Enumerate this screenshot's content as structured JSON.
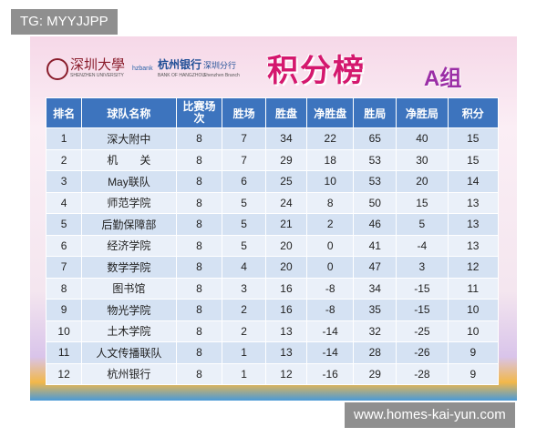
{
  "watermarks": {
    "top": "TG: MYYJJPP",
    "bottom": "www.homes-kai-yun.com"
  },
  "header": {
    "university": "深圳大學",
    "university_en": "SHENZHEN UNIVERSITY",
    "bank_short": "hzbank",
    "bank": "杭州银行",
    "branch": "深圳分行",
    "bank_en": "BANK OF HANGZHOU",
    "branch_en": "Shenzhen Branch",
    "title": "积分榜",
    "group": "A组"
  },
  "table": {
    "columns": [
      "排名",
      "球队名称",
      "比赛场次",
      "胜场",
      "胜盘",
      "净胜盘",
      "胜局",
      "净胜局",
      "积分"
    ],
    "rows": [
      [
        1,
        "深大附中",
        8,
        7,
        34,
        22,
        65,
        40,
        15
      ],
      [
        2,
        "机　　关",
        8,
        7,
        29,
        18,
        53,
        30,
        15
      ],
      [
        3,
        "May联队",
        8,
        6,
        25,
        10,
        53,
        20,
        14
      ],
      [
        4,
        "师范学院",
        8,
        5,
        24,
        8,
        50,
        15,
        13
      ],
      [
        5,
        "后勤保障部",
        8,
        5,
        21,
        2,
        46,
        5,
        13
      ],
      [
        6,
        "经济学院",
        8,
        5,
        20,
        0,
        41,
        -4,
        13
      ],
      [
        7,
        "数学学院",
        8,
        4,
        20,
        0,
        47,
        3,
        12
      ],
      [
        8,
        "图书馆",
        8,
        3,
        16,
        -8,
        34,
        -15,
        11
      ],
      [
        9,
        "物光学院",
        8,
        2,
        16,
        -8,
        35,
        -15,
        10
      ],
      [
        10,
        "土木学院",
        8,
        2,
        13,
        -14,
        32,
        -25,
        10
      ],
      [
        11,
        "人文传播联队",
        8,
        1,
        13,
        -14,
        28,
        -26,
        9
      ],
      [
        12,
        "杭州银行",
        8,
        1,
        12,
        -16,
        29,
        -28,
        9
      ]
    ]
  }
}
